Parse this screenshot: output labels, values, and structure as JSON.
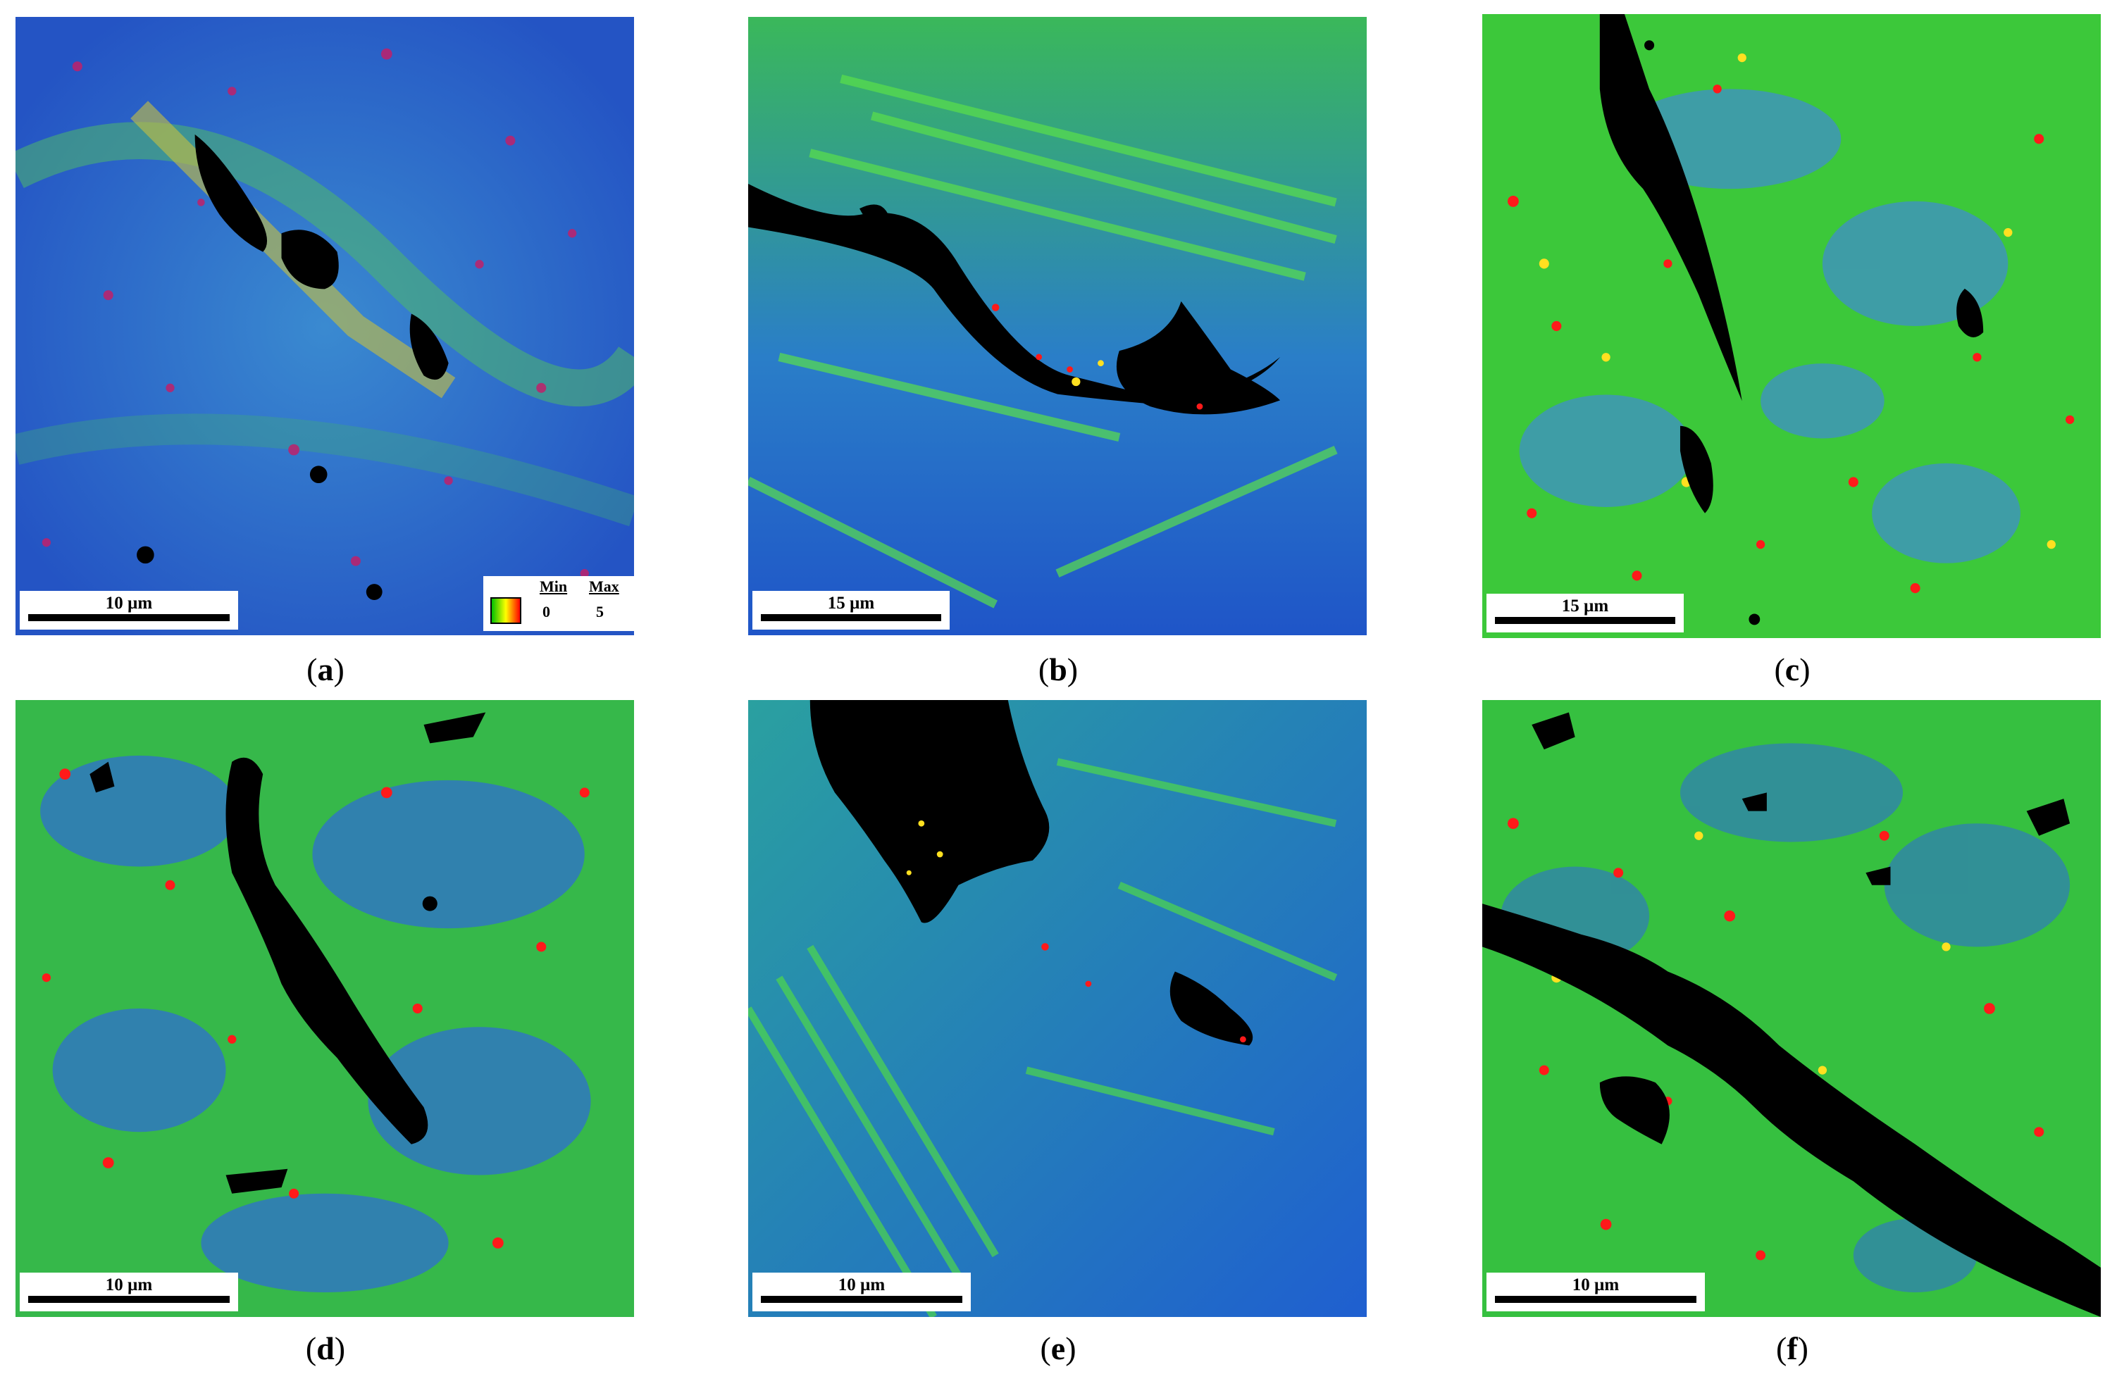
{
  "panels": [
    {
      "id": "a",
      "scale_label": "10 µm",
      "caption_letter": "a"
    },
    {
      "id": "b",
      "scale_label": "15 µm",
      "caption_letter": "b"
    },
    {
      "id": "c",
      "scale_label": "15 µm",
      "caption_letter": "c"
    },
    {
      "id": "d",
      "scale_label": "10 µm",
      "caption_letter": "d"
    },
    {
      "id": "e",
      "scale_label": "10 µm",
      "caption_letter": "e"
    },
    {
      "id": "f",
      "scale_label": "10 µm",
      "caption_letter": "f"
    }
  ],
  "legend": {
    "min_label": "Min",
    "max_label": "Max",
    "min_value": "0",
    "max_value": "5",
    "colors": [
      "#00c000",
      "#ffff00",
      "#ff0000"
    ]
  },
  "map_colors": {
    "low": "#1f5fd0",
    "mid": "#2ad14a",
    "high": "#ff1a1a",
    "accent": "#ffe020",
    "void": "#000000"
  }
}
